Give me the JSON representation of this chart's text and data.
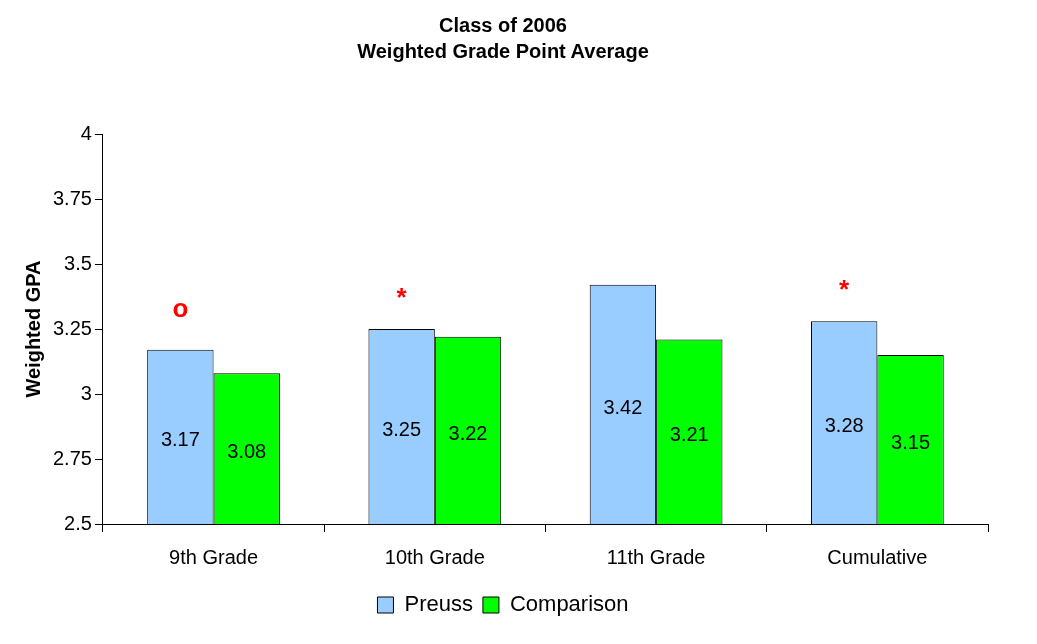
{
  "chart_data": {
    "type": "bar",
    "title": "Class of 2006",
    "subtitle": "Weighted Grade Point Average",
    "ylabel": "Weighted GPA",
    "categories": [
      "9th Grade",
      "10th Grade",
      "11th Grade",
      "Cumulative"
    ],
    "series": [
      {
        "name": "Preuss",
        "color": "#99ccff",
        "values": [
          3.17,
          3.25,
          3.42,
          3.28
        ]
      },
      {
        "name": "Comparison",
        "color": "#00ff00",
        "values": [
          3.08,
          3.22,
          3.21,
          3.15
        ]
      }
    ],
    "ylim": [
      2.5,
      4
    ],
    "yticks": [
      2.5,
      2.75,
      3,
      3.25,
      3.5,
      3.75,
      4
    ],
    "grid": false,
    "legend": "bottom",
    "data_labels": true,
    "annotations": [
      "o",
      "*",
      "*"
    ]
  }
}
